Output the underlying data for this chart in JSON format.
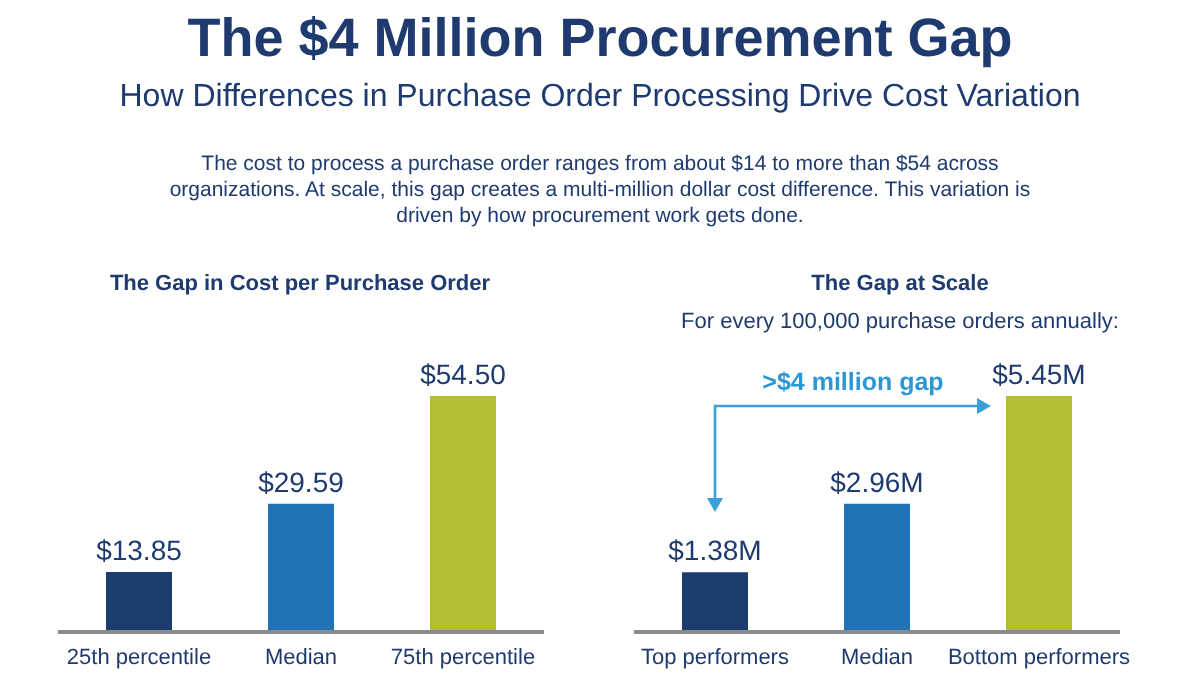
{
  "chart_data": [
    {
      "type": "other",
      "title": "The $4 Million Procurement Gap",
      "subtitle": "How Differences in Purchase Order Processing Drive Cost Variation",
      "annotations": [
        "The cost to process a purchase order ranges from about $14 to more than $54 across organizations. At scale, this gap creates a multi-million dollar cost difference. This variation is driven by how procurement work gets done."
      ]
    },
    {
      "type": "bar",
      "title": "The Gap in Cost per Purchase Order",
      "categories": [
        "25th percentile",
        "Median",
        "75th percentile"
      ],
      "values": [
        13.85,
        29.59,
        54.5
      ],
      "colors": [
        "#1b3d6d",
        "#2272b6",
        "#b5bd35"
      ],
      "value_labels": [
        "$13.85",
        "$29.59",
        "$54.50"
      ]
    },
    {
      "type": "bar",
      "title": "The Gap at Scale",
      "subtitle": "For every 100,000 purchase orders annually:",
      "categories": [
        "Top performers",
        "Median",
        "Bottom performers"
      ],
      "values": [
        1.38,
        2.96,
        5.45
      ],
      "colors": [
        "#1b3d6d",
        "#2272b6",
        "#b5bd35"
      ],
      "value_labels": [
        "$1.38M",
        "$2.96M",
        "$5.45M"
      ],
      "annotations": [
        ">$4 million gap"
      ]
    }
  ]
}
